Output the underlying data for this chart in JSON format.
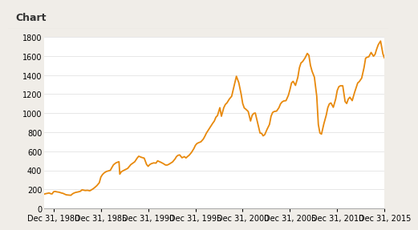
{
  "title": "Chart",
  "line_color": "#E8890C",
  "background_color": "#f0ede8",
  "plot_bg_color": "#ffffff",
  "title_fontsize": 9,
  "tick_fontsize": 7,
  "ylim": [
    0,
    1800
  ],
  "yticks": [
    0,
    200,
    400,
    600,
    800,
    1000,
    1200,
    1400,
    1600,
    1800
  ],
  "xtick_years": [
    1980,
    1985,
    1990,
    1995,
    2000,
    2005,
    2010,
    2015
  ],
  "xtick_labels": [
    "Dec 31, 1980",
    "Dec 31, 1985",
    "Dec 31, 1990",
    "Dec 31, 1995",
    "Dec 31, 2000",
    "Dec 31, 2005",
    "Dec 31, 2010",
    "Dec 31, 2015"
  ],
  "xstart": 1979.917,
  "xend": 2015.917,
  "blue_stripe_color": "#b8c8d8",
  "grid_color": "#dddddd",
  "msci_data": [
    [
      1979.917,
      150
    ],
    [
      1980.083,
      155
    ],
    [
      1980.25,
      158
    ],
    [
      1980.417,
      162
    ],
    [
      1980.5,
      160
    ],
    [
      1980.583,
      155
    ],
    [
      1980.75,
      152
    ],
    [
      1980.917,
      175
    ],
    [
      1981.083,
      178
    ],
    [
      1981.25,
      174
    ],
    [
      1981.5,
      170
    ],
    [
      1981.75,
      162
    ],
    [
      1981.917,
      158
    ],
    [
      1982.083,
      150
    ],
    [
      1982.25,
      143
    ],
    [
      1982.5,
      140
    ],
    [
      1982.75,
      138
    ],
    [
      1982.917,
      153
    ],
    [
      1983.083,
      162
    ],
    [
      1983.25,
      168
    ],
    [
      1983.5,
      173
    ],
    [
      1983.75,
      180
    ],
    [
      1983.917,
      195
    ],
    [
      1984.083,
      192
    ],
    [
      1984.25,
      188
    ],
    [
      1984.5,
      190
    ],
    [
      1984.75,
      185
    ],
    [
      1984.917,
      195
    ],
    [
      1985.083,
      205
    ],
    [
      1985.25,
      218
    ],
    [
      1985.5,
      240
    ],
    [
      1985.75,
      270
    ],
    [
      1985.917,
      330
    ],
    [
      1986.083,
      355
    ],
    [
      1986.25,
      372
    ],
    [
      1986.5,
      388
    ],
    [
      1986.75,
      395
    ],
    [
      1986.917,
      400
    ],
    [
      1987.083,
      430
    ],
    [
      1987.25,
      458
    ],
    [
      1987.5,
      478
    ],
    [
      1987.75,
      488
    ],
    [
      1987.833,
      490
    ],
    [
      1987.917,
      360
    ],
    [
      1988.083,
      385
    ],
    [
      1988.25,
      395
    ],
    [
      1988.5,
      408
    ],
    [
      1988.75,
      420
    ],
    [
      1988.917,
      440
    ],
    [
      1989.083,
      460
    ],
    [
      1989.25,
      472
    ],
    [
      1989.5,
      490
    ],
    [
      1989.75,
      528
    ],
    [
      1989.917,
      548
    ],
    [
      1990.083,
      542
    ],
    [
      1990.25,
      535
    ],
    [
      1990.5,
      528
    ],
    [
      1990.75,
      462
    ],
    [
      1990.917,
      442
    ],
    [
      1991.083,
      460
    ],
    [
      1991.25,
      470
    ],
    [
      1991.5,
      478
    ],
    [
      1991.75,
      476
    ],
    [
      1991.917,
      500
    ],
    [
      1992.083,
      492
    ],
    [
      1992.25,
      485
    ],
    [
      1992.5,
      472
    ],
    [
      1992.75,
      456
    ],
    [
      1992.917,
      455
    ],
    [
      1993.083,
      462
    ],
    [
      1993.25,
      472
    ],
    [
      1993.5,
      488
    ],
    [
      1993.75,
      518
    ],
    [
      1993.917,
      545
    ],
    [
      1994.083,
      558
    ],
    [
      1994.25,
      562
    ],
    [
      1994.5,
      532
    ],
    [
      1994.75,
      544
    ],
    [
      1994.917,
      530
    ],
    [
      1995.083,
      545
    ],
    [
      1995.25,
      558
    ],
    [
      1995.5,
      588
    ],
    [
      1995.75,
      628
    ],
    [
      1995.917,
      663
    ],
    [
      1996.083,
      682
    ],
    [
      1996.25,
      690
    ],
    [
      1996.5,
      700
    ],
    [
      1996.75,
      728
    ],
    [
      1996.917,
      758
    ],
    [
      1997.083,
      792
    ],
    [
      1997.25,
      818
    ],
    [
      1997.5,
      858
    ],
    [
      1997.75,
      895
    ],
    [
      1997.917,
      918
    ],
    [
      1998.083,
      958
    ],
    [
      1998.25,
      975
    ],
    [
      1998.5,
      1058
    ],
    [
      1998.667,
      968
    ],
    [
      1998.917,
      1058
    ],
    [
      1999.083,
      1092
    ],
    [
      1999.25,
      1108
    ],
    [
      1999.5,
      1148
    ],
    [
      1999.75,
      1178
    ],
    [
      1999.917,
      1248
    ],
    [
      2000.083,
      1320
    ],
    [
      2000.25,
      1388
    ],
    [
      2000.5,
      1322
    ],
    [
      2000.75,
      1202
    ],
    [
      2000.917,
      1102
    ],
    [
      2001.083,
      1055
    ],
    [
      2001.25,
      1042
    ],
    [
      2001.5,
      1018
    ],
    [
      2001.75,
      918
    ],
    [
      2001.917,
      978
    ],
    [
      2002.083,
      998
    ],
    [
      2002.25,
      1002
    ],
    [
      2002.5,
      898
    ],
    [
      2002.75,
      792
    ],
    [
      2002.917,
      788
    ],
    [
      2003.083,
      762
    ],
    [
      2003.25,
      775
    ],
    [
      2003.5,
      832
    ],
    [
      2003.75,
      882
    ],
    [
      2003.917,
      968
    ],
    [
      2004.083,
      1008
    ],
    [
      2004.25,
      1018
    ],
    [
      2004.5,
      1022
    ],
    [
      2004.75,
      1058
    ],
    [
      2004.917,
      1098
    ],
    [
      2005.083,
      1118
    ],
    [
      2005.25,
      1128
    ],
    [
      2005.5,
      1132
    ],
    [
      2005.75,
      1188
    ],
    [
      2005.917,
      1248
    ],
    [
      2006.083,
      1318
    ],
    [
      2006.25,
      1335
    ],
    [
      2006.5,
      1292
    ],
    [
      2006.75,
      1378
    ],
    [
      2006.917,
      1478
    ],
    [
      2007.083,
      1528
    ],
    [
      2007.25,
      1542
    ],
    [
      2007.5,
      1578
    ],
    [
      2007.75,
      1628
    ],
    [
      2007.917,
      1608
    ],
    [
      2008.083,
      1502
    ],
    [
      2008.25,
      1442
    ],
    [
      2008.5,
      1378
    ],
    [
      2008.75,
      1178
    ],
    [
      2008.917,
      882
    ],
    [
      2009.083,
      792
    ],
    [
      2009.25,
      780
    ],
    [
      2009.5,
      888
    ],
    [
      2009.75,
      978
    ],
    [
      2009.917,
      1058
    ],
    [
      2010.083,
      1098
    ],
    [
      2010.25,
      1108
    ],
    [
      2010.5,
      1062
    ],
    [
      2010.75,
      1148
    ],
    [
      2010.917,
      1238
    ],
    [
      2011.083,
      1278
    ],
    [
      2011.25,
      1288
    ],
    [
      2011.5,
      1288
    ],
    [
      2011.75,
      1122
    ],
    [
      2011.917,
      1102
    ],
    [
      2012.083,
      1148
    ],
    [
      2012.25,
      1168
    ],
    [
      2012.5,
      1132
    ],
    [
      2012.75,
      1218
    ],
    [
      2012.917,
      1268
    ],
    [
      2013.083,
      1318
    ],
    [
      2013.25,
      1332
    ],
    [
      2013.5,
      1368
    ],
    [
      2013.75,
      1478
    ],
    [
      2013.917,
      1578
    ],
    [
      2014.083,
      1588
    ],
    [
      2014.25,
      1592
    ],
    [
      2014.5,
      1638
    ],
    [
      2014.75,
      1598
    ],
    [
      2014.917,
      1618
    ],
    [
      2015.083,
      1672
    ],
    [
      2015.25,
      1718
    ],
    [
      2015.5,
      1758
    ],
    [
      2015.75,
      1622
    ],
    [
      2015.917,
      1578
    ]
  ]
}
